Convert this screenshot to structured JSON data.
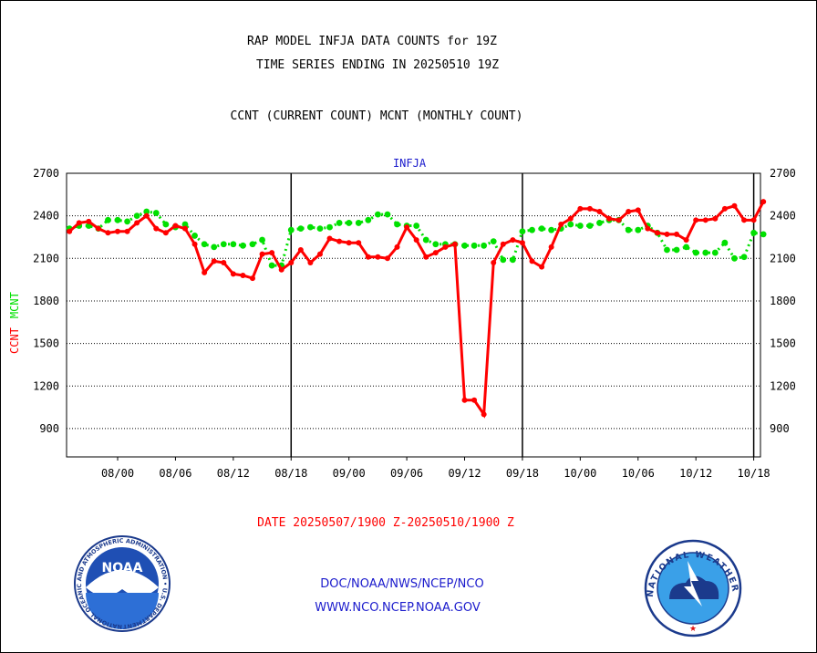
{
  "page": {
    "title_line1": "RAP MODEL INFJA DATA COUNTS for 19Z",
    "title_line2": "TIME SERIES ENDING IN 20250510 19Z",
    "legend_text": "CCNT (CURRENT COUNT) MCNT (MONTHLY COUNT)",
    "plot_label": "INFJA",
    "date_range": "DATE 20250507/1900 Z-20250510/1900 Z",
    "footer_line1": "DOC/NOAA/NWS/NCEP/NCO",
    "footer_line2": "WWW.NCO.NCEP.NOAA.GOV",
    "logo_left_text": "NOAA",
    "logo_left_ring": "NATIONAL OCEANIC AND ATMOSPHERIC ADMINISTRATION • U.S. DEPARTMENT OF COMMERCE",
    "logo_right_ring": "NATIONAL WEATHER SERVICE"
  },
  "colors": {
    "ccnt": "#ff0000",
    "mcnt": "#00e000",
    "title": "#000000",
    "date_text": "#ff0000",
    "footer_text": "#1a1acc",
    "plot_label": "#1a1acc"
  },
  "chart_data": {
    "type": "line",
    "title": "RAP MODEL INFJA DATA COUNTS for 19Z",
    "subtitle": "TIME SERIES ENDING IN 20250510 19Z",
    "ylabel_series1": "CCNT",
    "ylabel_series2": "MCNT",
    "ylim": [
      700,
      2700
    ],
    "yticks": [
      900,
      1200,
      1500,
      1800,
      2100,
      2400,
      2700
    ],
    "xlim": [
      -0.3,
      71.7
    ],
    "xtick_labels": [
      "08/00",
      "08/06",
      "08/12",
      "08/18",
      "09/00",
      "09/06",
      "09/12",
      "09/18",
      "10/00",
      "10/06",
      "10/12",
      "10/18"
    ],
    "xtick_hours": [
      5,
      11,
      17,
      23,
      29,
      35,
      41,
      47,
      53,
      59,
      65,
      71
    ],
    "day_boundaries": [
      23,
      47,
      71
    ],
    "grid": "horizontal",
    "series": [
      {
        "name": "CCNT",
        "color": "#ff0000",
        "values": [
          2290,
          2350,
          2360,
          2310,
          2280,
          2290,
          2290,
          2350,
          2400,
          2310,
          2280,
          2330,
          2310,
          2200,
          2000,
          2080,
          2070,
          1990,
          1980,
          1960,
          2130,
          2140,
          2020,
          2070,
          2160,
          2070,
          2130,
          2240,
          2220,
          2210,
          2210,
          2110,
          2110,
          2100,
          2180,
          2320,
          2230,
          2110,
          2140,
          2180,
          2200,
          1100,
          1100,
          1000,
          2070,
          2200,
          2230,
          2210,
          2080,
          2040,
          2180,
          2340,
          2380,
          2450,
          2450,
          2430,
          2380,
          2370,
          2430,
          2440,
          2310,
          2280,
          2270,
          2270,
          2230,
          2370,
          2370,
          2380,
          2450,
          2470,
          2370,
          2370,
          2500
        ]
      },
      {
        "name": "MCNT",
        "color": "#00e000",
        "values": [
          2310,
          2330,
          2330,
          2310,
          2370,
          2370,
          2360,
          2400,
          2430,
          2420,
          2340,
          2320,
          2340,
          2260,
          2200,
          2180,
          2200,
          2200,
          2190,
          2200,
          2230,
          2050,
          2050,
          2300,
          2310,
          2320,
          2310,
          2320,
          2350,
          2350,
          2350,
          2370,
          2410,
          2410,
          2340,
          2330,
          2330,
          2230,
          2200,
          2200,
          2200,
          2190,
          2190,
          2190,
          2220,
          2090,
          2090,
          2290,
          2300,
          2310,
          2300,
          2310,
          2340,
          2330,
          2330,
          2350,
          2370,
          2370,
          2300,
          2300,
          2330,
          2280,
          2160,
          2160,
          2180,
          2140,
          2140,
          2140,
          2210,
          2100,
          2110,
          2280,
          2270
        ]
      }
    ]
  }
}
